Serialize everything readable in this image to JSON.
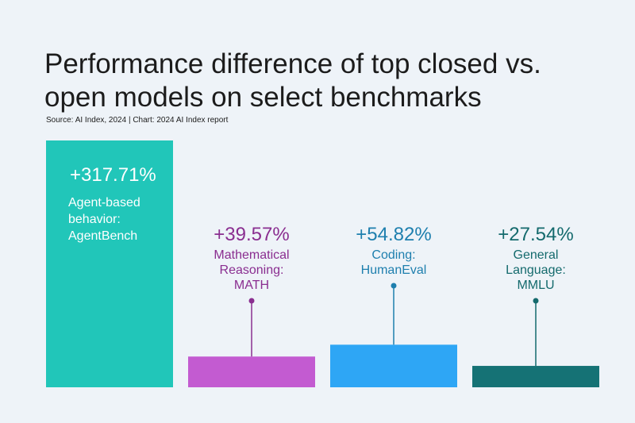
{
  "title": "Performance difference of top closed vs. open models on select benchmarks",
  "source": "Source: AI Index, 2024 | Chart: 2024 AI Index report",
  "chart_data": {
    "type": "bar",
    "categories": [
      "Agent-based behavior: AgentBench",
      "Mathematical Reasoning: MATH",
      "Coding: HumanEval",
      "General Language: MMLU"
    ],
    "label_lines": [
      [
        "Agent-based",
        "behavior:",
        "AgentBench"
      ],
      [
        "Mathematical",
        "Reasoning:",
        "MATH"
      ],
      [
        "Coding:",
        "HumanEval"
      ],
      [
        "General",
        "Language:",
        "MMLU"
      ]
    ],
    "values": [
      317.71,
      39.57,
      54.82,
      27.54
    ],
    "value_labels": [
      "+317.71%",
      "+39.57%",
      "+54.82%",
      "+27.54%"
    ],
    "bar_colors": [
      "#21c6b9",
      "#c35bd1",
      "#2ea6f5",
      "#157275"
    ],
    "text_colors": [
      "#ffffff",
      "#8a2e90",
      "#1e7fae",
      "#146a6d"
    ],
    "ylim": [
      0,
      317.71
    ],
    "grid": false,
    "legend": "none"
  }
}
